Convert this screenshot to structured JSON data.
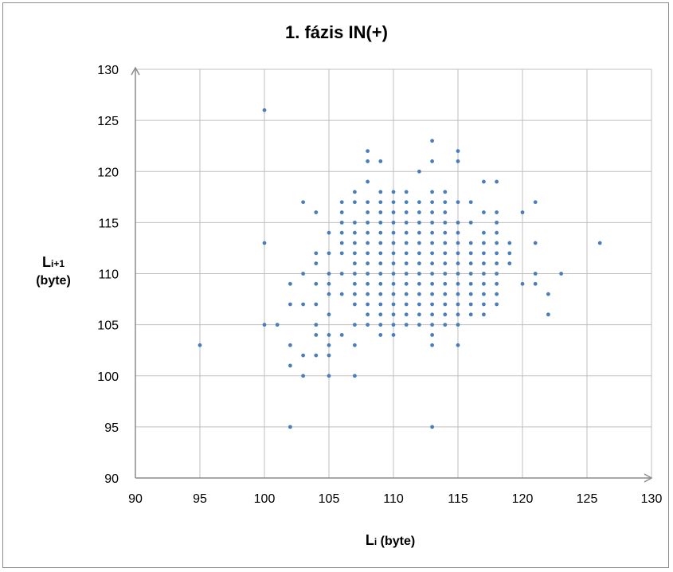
{
  "chart_data": {
    "type": "scatter",
    "title": "1. fázis IN(+)",
    "xlabel": {
      "main": "L",
      "sub": "i",
      "unit": " (byte)"
    },
    "ylabel": {
      "main": "L",
      "sub": "i+1",
      "unit": "(byte)"
    },
    "xlim": [
      90,
      130
    ],
    "ylim": [
      90,
      130
    ],
    "xticks": [
      "90",
      "95",
      "100",
      "105",
      "110",
      "115",
      "120",
      "125",
      "130"
    ],
    "yticks": [
      "90",
      "95",
      "100",
      "105",
      "110",
      "115",
      "120",
      "125",
      "130"
    ],
    "grid": true,
    "legend": "none",
    "marker_color": "#4a7ebb",
    "points": [
      [
        95,
        103
      ],
      [
        100,
        126
      ],
      [
        100,
        113
      ],
      [
        100,
        105
      ],
      [
        101,
        105
      ],
      [
        102,
        109
      ],
      [
        102,
        107
      ],
      [
        102,
        103
      ],
      [
        102,
        101
      ],
      [
        102,
        95
      ],
      [
        103,
        117
      ],
      [
        103,
        110
      ],
      [
        103,
        107
      ],
      [
        103,
        102
      ],
      [
        103,
        100
      ],
      [
        104,
        116
      ],
      [
        104,
        112
      ],
      [
        104,
        111
      ],
      [
        104,
        109
      ],
      [
        104,
        107
      ],
      [
        104,
        105
      ],
      [
        104,
        104
      ],
      [
        104,
        102
      ],
      [
        105,
        114
      ],
      [
        105,
        112
      ],
      [
        105,
        110
      ],
      [
        105,
        109
      ],
      [
        105,
        108
      ],
      [
        105,
        106
      ],
      [
        105,
        104
      ],
      [
        105,
        103
      ],
      [
        105,
        102
      ],
      [
        105,
        100
      ],
      [
        106,
        117
      ],
      [
        106,
        116
      ],
      [
        106,
        115
      ],
      [
        106,
        114
      ],
      [
        106,
        113
      ],
      [
        106,
        112
      ],
      [
        106,
        110
      ],
      [
        106,
        108
      ],
      [
        106,
        104
      ],
      [
        107,
        118
      ],
      [
        107,
        117
      ],
      [
        107,
        115
      ],
      [
        107,
        114
      ],
      [
        107,
        113
      ],
      [
        107,
        112
      ],
      [
        107,
        111
      ],
      [
        107,
        110
      ],
      [
        107,
        109
      ],
      [
        107,
        108
      ],
      [
        107,
        107
      ],
      [
        107,
        105
      ],
      [
        107,
        103
      ],
      [
        107,
        100
      ],
      [
        108,
        122
      ],
      [
        108,
        121
      ],
      [
        108,
        119
      ],
      [
        108,
        117
      ],
      [
        108,
        116
      ],
      [
        108,
        115
      ],
      [
        108,
        114
      ],
      [
        108,
        113
      ],
      [
        108,
        112
      ],
      [
        108,
        111
      ],
      [
        108,
        110
      ],
      [
        108,
        109
      ],
      [
        108,
        108
      ],
      [
        108,
        107
      ],
      [
        108,
        106
      ],
      [
        108,
        105
      ],
      [
        109,
        121
      ],
      [
        109,
        118
      ],
      [
        109,
        117
      ],
      [
        109,
        116
      ],
      [
        109,
        115
      ],
      [
        109,
        114
      ],
      [
        109,
        113
      ],
      [
        109,
        112
      ],
      [
        109,
        111
      ],
      [
        109,
        110
      ],
      [
        109,
        109
      ],
      [
        109,
        108
      ],
      [
        109,
        107
      ],
      [
        109,
        106
      ],
      [
        109,
        105
      ],
      [
        109,
        104
      ],
      [
        110,
        118
      ],
      [
        110,
        117
      ],
      [
        110,
        116
      ],
      [
        110,
        115
      ],
      [
        110,
        114
      ],
      [
        110,
        113
      ],
      [
        110,
        112
      ],
      [
        110,
        111
      ],
      [
        110,
        110
      ],
      [
        110,
        109
      ],
      [
        110,
        108
      ],
      [
        110,
        107
      ],
      [
        110,
        106
      ],
      [
        110,
        105
      ],
      [
        110,
        104
      ],
      [
        111,
        118
      ],
      [
        111,
        117
      ],
      [
        111,
        116
      ],
      [
        111,
        115
      ],
      [
        111,
        114
      ],
      [
        111,
        113
      ],
      [
        111,
        112
      ],
      [
        111,
        111
      ],
      [
        111,
        110
      ],
      [
        111,
        109
      ],
      [
        111,
        108
      ],
      [
        111,
        107
      ],
      [
        111,
        106
      ],
      [
        111,
        105
      ],
      [
        112,
        120
      ],
      [
        112,
        117
      ],
      [
        112,
        116
      ],
      [
        112,
        115
      ],
      [
        112,
        114
      ],
      [
        112,
        113
      ],
      [
        112,
        112
      ],
      [
        112,
        111
      ],
      [
        112,
        110
      ],
      [
        112,
        109
      ],
      [
        112,
        108
      ],
      [
        112,
        107
      ],
      [
        112,
        106
      ],
      [
        112,
        105
      ],
      [
        113,
        123
      ],
      [
        113,
        121
      ],
      [
        113,
        118
      ],
      [
        113,
        117
      ],
      [
        113,
        116
      ],
      [
        113,
        115
      ],
      [
        113,
        114
      ],
      [
        113,
        113
      ],
      [
        113,
        112
      ],
      [
        113,
        111
      ],
      [
        113,
        110
      ],
      [
        113,
        109
      ],
      [
        113,
        108
      ],
      [
        113,
        107
      ],
      [
        113,
        106
      ],
      [
        113,
        105
      ],
      [
        113,
        104
      ],
      [
        113,
        103
      ],
      [
        113,
        95
      ],
      [
        114,
        118
      ],
      [
        114,
        117
      ],
      [
        114,
        116
      ],
      [
        114,
        115
      ],
      [
        114,
        114
      ],
      [
        114,
        113
      ],
      [
        114,
        112
      ],
      [
        114,
        111
      ],
      [
        114,
        110
      ],
      [
        114,
        109
      ],
      [
        114,
        108
      ],
      [
        114,
        107
      ],
      [
        114,
        106
      ],
      [
        114,
        105
      ],
      [
        115,
        122
      ],
      [
        115,
        121
      ],
      [
        115,
        117
      ],
      [
        115,
        115
      ],
      [
        115,
        114
      ],
      [
        115,
        113
      ],
      [
        115,
        112
      ],
      [
        115,
        111
      ],
      [
        115,
        110
      ],
      [
        115,
        109
      ],
      [
        115,
        108
      ],
      [
        115,
        107
      ],
      [
        115,
        106
      ],
      [
        115,
        105
      ],
      [
        115,
        103
      ],
      [
        116,
        117
      ],
      [
        116,
        115
      ],
      [
        116,
        113
      ],
      [
        116,
        112
      ],
      [
        116,
        111
      ],
      [
        116,
        110
      ],
      [
        116,
        109
      ],
      [
        116,
        108
      ],
      [
        116,
        107
      ],
      [
        116,
        106
      ],
      [
        117,
        119
      ],
      [
        117,
        116
      ],
      [
        117,
        114
      ],
      [
        117,
        113
      ],
      [
        117,
        112
      ],
      [
        117,
        111
      ],
      [
        117,
        110
      ],
      [
        117,
        109
      ],
      [
        117,
        108
      ],
      [
        117,
        107
      ],
      [
        117,
        106
      ],
      [
        118,
        119
      ],
      [
        118,
        116
      ],
      [
        118,
        115
      ],
      [
        118,
        114
      ],
      [
        118,
        113
      ],
      [
        118,
        112
      ],
      [
        118,
        111
      ],
      [
        118,
        110
      ],
      [
        118,
        109
      ],
      [
        118,
        108
      ],
      [
        118,
        107
      ],
      [
        119,
        113
      ],
      [
        119,
        112
      ],
      [
        119,
        111
      ],
      [
        120,
        116
      ],
      [
        120,
        109
      ],
      [
        121,
        117
      ],
      [
        121,
        113
      ],
      [
        121,
        110
      ],
      [
        121,
        109
      ],
      [
        122,
        108
      ],
      [
        122,
        106
      ],
      [
        123,
        110
      ],
      [
        126,
        113
      ]
    ]
  }
}
